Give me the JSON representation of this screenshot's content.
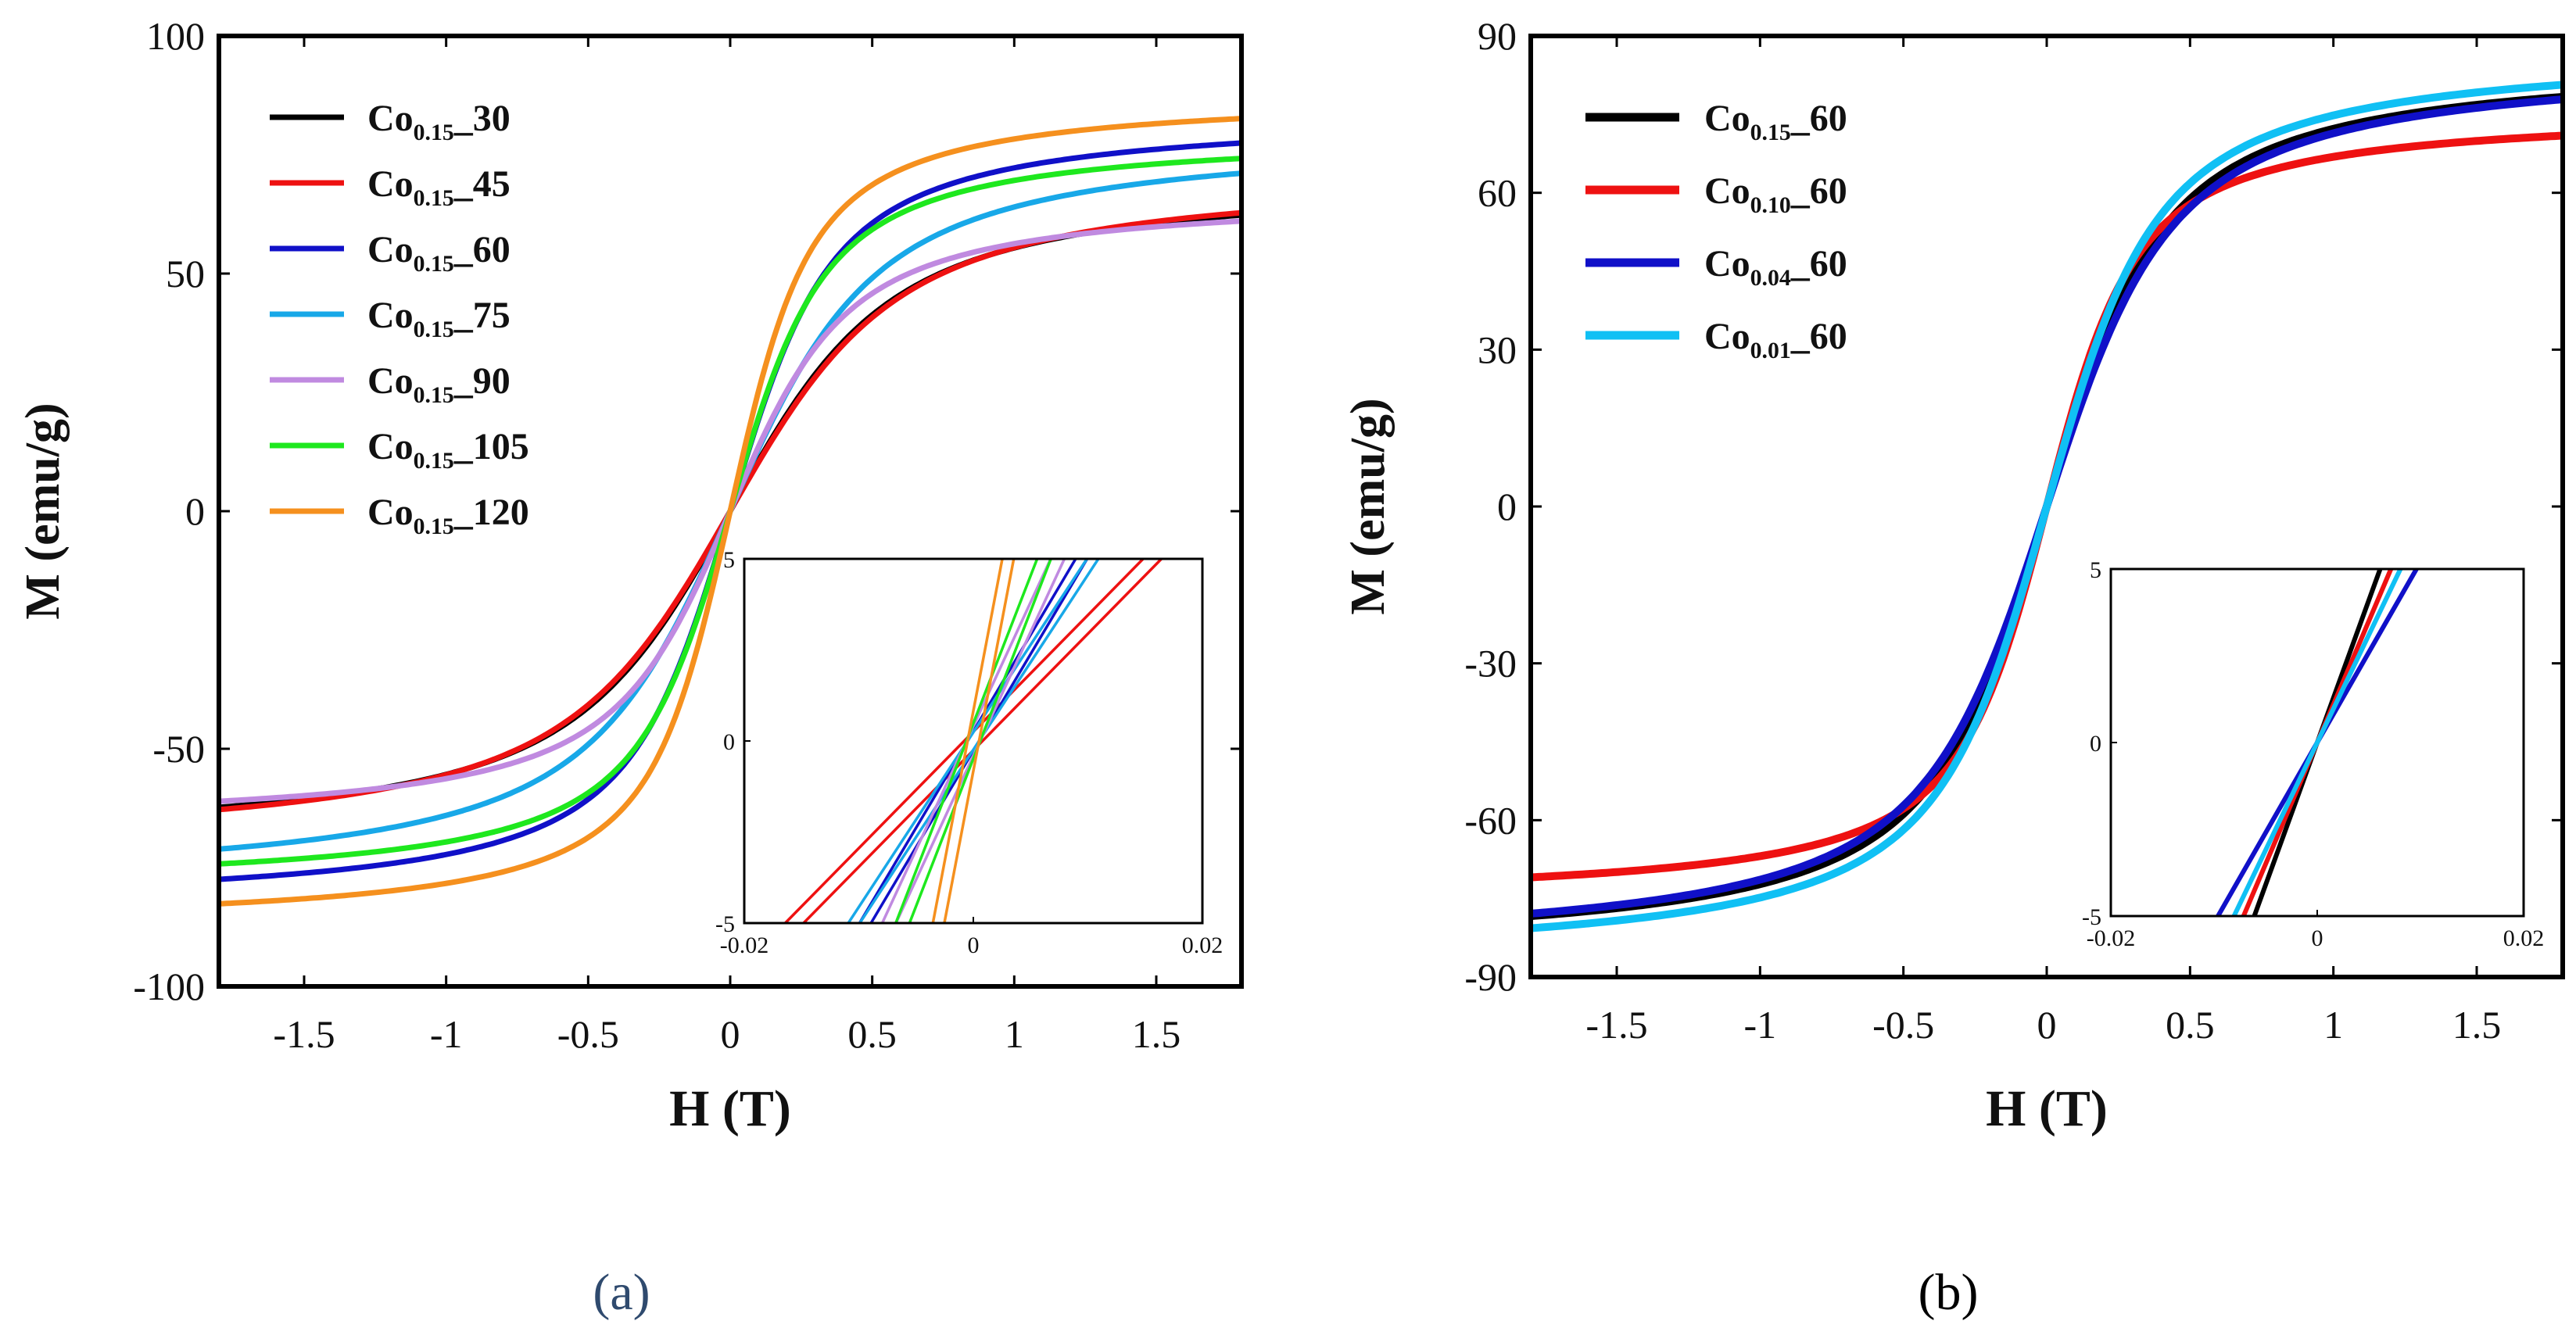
{
  "colors": {
    "black": "#000000",
    "red": "#ee1111",
    "blue": "#1010c8",
    "cyan": "#18a8e8",
    "lilac": "#c08ae0",
    "green": "#1ee81e",
    "orange": "#f5901e",
    "skyblue": "#10c0f4",
    "caption_a": "#2f4a6e",
    "caption_b": "#000000"
  },
  "chart_data": [
    {
      "id": "a",
      "type": "line",
      "caption": "(a)",
      "xlabel": "H (T)",
      "ylabel": "M (emu/g)",
      "xlim": [
        -1.8,
        1.8
      ],
      "ylim": [
        -100,
        100
      ],
      "xticks": [
        -1.5,
        -1,
        -0.5,
        0,
        0.5,
        1,
        1.5
      ],
      "xtick_labels": [
        "-1.5",
        "-1",
        "-0.5",
        "0",
        "0.5",
        "1",
        "1.5"
      ],
      "yticks": [
        -100,
        -50,
        0,
        50,
        100
      ],
      "ytick_labels": [
        "-100",
        "-50",
        "0",
        "50",
        "100"
      ],
      "legend_position": "top-left",
      "series": [
        {
          "name": "Co0.15_30",
          "base": "Co",
          "sub": "0.15",
          "suffix": "_30",
          "color_key": "black",
          "ms": 71,
          "h0": 0.22
        },
        {
          "name": "Co0.15_45",
          "base": "Co",
          "sub": "0.15",
          "suffix": "_45",
          "color_key": "red",
          "ms": 72,
          "h0": 0.23
        },
        {
          "name": "Co0.15_60",
          "base": "Co",
          "sub": "0.15",
          "suffix": "_60",
          "color_key": "blue",
          "ms": 84,
          "h0": 0.14
        },
        {
          "name": "Co0.15_75",
          "base": "Co",
          "sub": "0.15",
          "suffix": "_75",
          "color_key": "cyan",
          "ms": 80,
          "h0": 0.2
        },
        {
          "name": "Co0.15_90",
          "base": "Co",
          "sub": "0.15",
          "suffix": "_90",
          "color_key": "lilac",
          "ms": 67,
          "h0": 0.16
        },
        {
          "name": "Co0.15_105",
          "base": "Co",
          "sub": "0.15",
          "suffix": "_105",
          "color_key": "green",
          "ms": 80,
          "h0": 0.13
        },
        {
          "name": "Co0.15_120",
          "base": "Co",
          "sub": "0.15",
          "suffix": "_120",
          "color_key": "orange",
          "ms": 88,
          "h0": 0.11
        }
      ],
      "inset": {
        "xlim": [
          -0.02,
          0.02
        ],
        "ylim": [
          -5,
          5
        ],
        "xtick_labels": [
          "-0.02",
          "0",
          "0.02"
        ],
        "ytick_labels": [
          "-5",
          "0",
          "5"
        ],
        "lines": [
          {
            "color_key": "red",
            "slope": 320,
            "offset": 0.0008
          },
          {
            "color_key": "blue",
            "slope": 530,
            "offset": 0.0005
          },
          {
            "color_key": "cyan",
            "slope": 480,
            "offset": 0.0005
          },
          {
            "color_key": "lilac",
            "slope": 680,
            "offset": 0.0006
          },
          {
            "color_key": "green",
            "slope": 810,
            "offset": 0.0006
          },
          {
            "color_key": "orange",
            "slope": 1650,
            "offset": 0.0005
          }
        ]
      }
    },
    {
      "id": "b",
      "type": "line",
      "caption": "(b)",
      "xlabel": "H (T)",
      "ylabel": "M (emu/g)",
      "xlim": [
        -1.8,
        1.8
      ],
      "ylim": [
        -90,
        90
      ],
      "xticks": [
        -1.5,
        -1,
        -0.5,
        0,
        0.5,
        1,
        1.5
      ],
      "xtick_labels": [
        "-1.5",
        "-1",
        "-0.5",
        "0",
        "0.5",
        "1",
        "1.5"
      ],
      "yticks": [
        -90,
        -60,
        -30,
        0,
        30,
        60,
        90
      ],
      "ytick_labels": [
        "-90",
        "-60",
        "-30",
        "0",
        "30",
        "60",
        "90"
      ],
      "legend_position": "top-left",
      "series": [
        {
          "name": "Co0.15_60",
          "base": "Co",
          "sub": "0.15",
          "suffix": "_60",
          "color_key": "black",
          "ms": 86,
          "h0": 0.16
        },
        {
          "name": "Co0.10_60",
          "base": "Co",
          "sub": "0.10",
          "suffix": "_60",
          "color_key": "red",
          "ms": 76,
          "h0": 0.12
        },
        {
          "name": "Co0.04_60",
          "base": "Co",
          "sub": "0.04",
          "suffix": "_60",
          "color_key": "blue",
          "ms": 86,
          "h0": 0.17
        },
        {
          "name": "Co0.01_60",
          "base": "Co",
          "sub": "0.01",
          "suffix": "_60",
          "color_key": "skyblue",
          "ms": 88,
          "h0": 0.15
        }
      ],
      "inset": {
        "xlim": [
          -0.02,
          0.02
        ],
        "ylim": [
          -5,
          5
        ],
        "xtick_labels": [
          "-0.02",
          "0",
          "0.02"
        ],
        "ytick_labels": [
          "-5",
          "0",
          "5"
        ],
        "lines": [
          {
            "color_key": "black",
            "slope": 820,
            "offset": 0
          },
          {
            "color_key": "red",
            "slope": 700,
            "offset": 0
          },
          {
            "color_key": "blue",
            "slope": 520,
            "offset": 0
          },
          {
            "color_key": "skyblue",
            "slope": 620,
            "offset": 0
          }
        ]
      }
    }
  ]
}
